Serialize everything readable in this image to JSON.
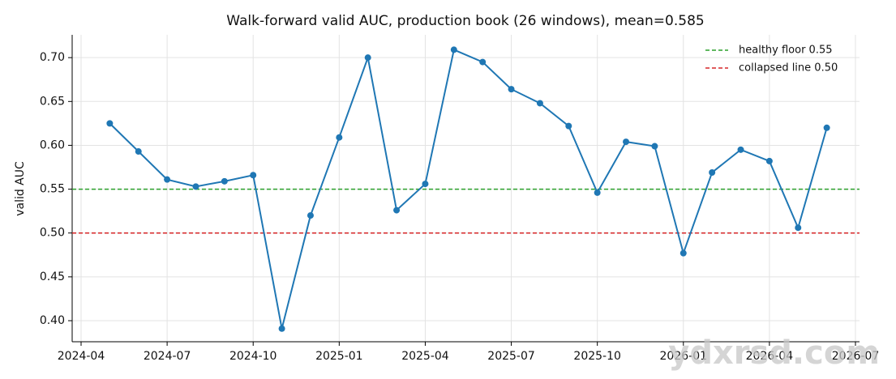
{
  "chart_data": {
    "type": "line",
    "title": "Walk-forward valid AUC, production book (26 windows), mean=0.585",
    "y_label": "valid AUC",
    "x": [
      "2024-05",
      "2024-06",
      "2024-07",
      "2024-08",
      "2024-09",
      "2024-10",
      "2024-11",
      "2024-12",
      "2025-01",
      "2025-02",
      "2025-03",
      "2025-04",
      "2025-05",
      "2025-06",
      "2025-07",
      "2025-08",
      "2025-09",
      "2025-10",
      "2025-11",
      "2025-12",
      "2026-01",
      "2026-02",
      "2026-03",
      "2026-04",
      "2026-05",
      "2026-06"
    ],
    "series": [
      {
        "color": "#1f77b4",
        "values": [
          0.625,
          0.593,
          0.561,
          0.553,
          0.559,
          0.566,
          0.391,
          0.52,
          0.609,
          0.7,
          0.526,
          0.556,
          0.709,
          0.695,
          0.664,
          0.648,
          0.622,
          0.546,
          0.604,
          0.599,
          0.477,
          0.569,
          0.595,
          0.582,
          0.506,
          0.62
        ]
      }
    ],
    "reference_lines": [
      {
        "name": "healthy floor 0.55",
        "value": 0.55,
        "color": "#2ca02c"
      },
      {
        "name": "collapsed line 0.50",
        "value": 0.5,
        "color": "#d62728"
      }
    ],
    "xlim": [
      "2024-04",
      "2026-07"
    ],
    "xticks": [
      "2024-04",
      "2024-07",
      "2024-10",
      "2025-01",
      "2025-04",
      "2025-07",
      "2025-10",
      "2026-01",
      "2026-04",
      "2026-07"
    ],
    "ylim": [
      0.376,
      0.726
    ],
    "yticks": [
      {
        "value": 0.4,
        "label": "0.40"
      },
      0.45,
      {
        "value": 0.5,
        "label": "0.50"
      },
      0.55,
      {
        "value": 0.6,
        "label": "0.60"
      },
      0.65,
      {
        "value": 0.7,
        "label": "0.70"
      }
    ],
    "grid": true,
    "legend": "upper right",
    "watermark": "ydxrsd.com"
  }
}
